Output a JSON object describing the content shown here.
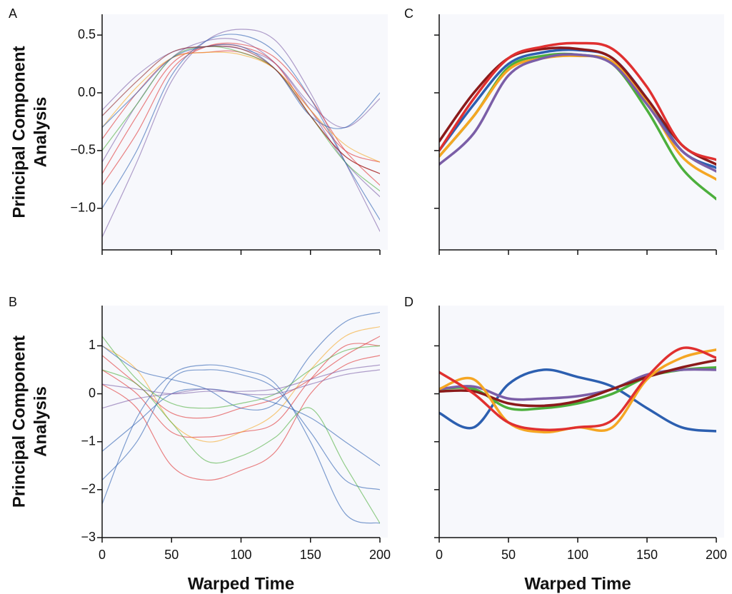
{
  "chart_data": [
    {
      "type": "line",
      "panel_label": "A",
      "y_label": [
        "Principal Component",
        "Analysis"
      ],
      "x": [
        0,
        25,
        50,
        75,
        100,
        125,
        150,
        175,
        200
      ],
      "xlim": [
        0,
        200
      ],
      "xticks": [
        0,
        50,
        100,
        150,
        200
      ],
      "show_xtick_labels": false,
      "ylim": [
        -1.36,
        0.68
      ],
      "yticks": [
        0.5,
        {
          "value": 0,
          "label": "0.0"
        },
        {
          "value": -0.5,
          "label": "−0.5"
        },
        {
          "value": -1,
          "label": "−1.0"
        }
      ],
      "show_ytick_labels": true,
      "line_width": 1.2,
      "opacity": 0.6,
      "series": [
        {
          "color": "#7b5ea7",
          "values": [
            -0.6,
            -0.1,
            0.3,
            0.45,
            0.45,
            0.25,
            -0.15,
            -0.6,
            -0.9
          ]
        },
        {
          "color": "#7b5ea7",
          "values": [
            -1.25,
            -0.6,
            0.1,
            0.45,
            0.55,
            0.45,
            0.0,
            -0.6,
            -1.2
          ]
        },
        {
          "color": "#7b5ea7",
          "values": [
            -0.15,
            0.15,
            0.35,
            0.4,
            0.38,
            0.25,
            -0.1,
            -0.3,
            -0.05
          ]
        },
        {
          "color": "#e03030",
          "values": [
            -0.7,
            -0.2,
            0.25,
            0.4,
            0.4,
            0.25,
            -0.2,
            -0.55,
            -0.7
          ]
        },
        {
          "color": "#e03030",
          "values": [
            -0.4,
            0.0,
            0.3,
            0.35,
            0.35,
            0.2,
            -0.15,
            -0.5,
            -0.6
          ]
        },
        {
          "color": "#e03030",
          "values": [
            -0.8,
            -0.35,
            0.2,
            0.4,
            0.42,
            0.3,
            -0.05,
            -0.5,
            -0.8
          ]
        },
        {
          "color": "#4caf3c",
          "values": [
            -0.5,
            -0.1,
            0.3,
            0.4,
            0.35,
            0.2,
            -0.2,
            -0.6,
            -0.85
          ]
        },
        {
          "color": "#f5a623",
          "values": [
            -0.3,
            0.05,
            0.3,
            0.35,
            0.33,
            0.2,
            -0.15,
            -0.45,
            -0.6
          ]
        },
        {
          "color": "#2c5fb0",
          "values": [
            -1.0,
            -0.5,
            0.15,
            0.45,
            0.5,
            0.35,
            -0.05,
            -0.6,
            -1.1
          ]
        },
        {
          "color": "#2c5fb0",
          "values": [
            -0.3,
            0.0,
            0.3,
            0.4,
            0.4,
            0.2,
            -0.2,
            -0.3,
            0.0
          ]
        },
        {
          "color": "#8b1a1a",
          "values": [
            -0.2,
            0.1,
            0.35,
            0.4,
            0.38,
            0.2,
            -0.2,
            -0.55,
            -0.7
          ]
        }
      ]
    },
    {
      "type": "line",
      "panel_label": "B",
      "y_label": [
        "Principal Component",
        "Analysis"
      ],
      "x_label": "Warped Time",
      "x": [
        0,
        25,
        50,
        75,
        100,
        125,
        150,
        175,
        200
      ],
      "xlim": [
        0,
        200
      ],
      "xticks": [
        0,
        50,
        100,
        150,
        200
      ],
      "show_xtick_labels": true,
      "ylim": [
        -3,
        1.84
      ],
      "yticks": [
        1,
        0,
        {
          "value": -1,
          "label": "−1"
        },
        {
          "value": -2,
          "label": "−2"
        },
        {
          "value": -3,
          "label": "−3"
        }
      ],
      "show_ytick_labels": true,
      "line_width": 1.2,
      "opacity": 0.6,
      "series": [
        {
          "color": "#e03030",
          "values": [
            0.5,
            0.0,
            -0.8,
            -0.9,
            -0.8,
            -0.6,
            0.3,
            1.0,
            1.0
          ]
        },
        {
          "color": "#e03030",
          "values": [
            0.2,
            -0.3,
            -1.5,
            -1.8,
            -1.6,
            -1.2,
            0.0,
            0.6,
            0.8
          ]
        },
        {
          "color": "#e03030",
          "values": [
            0.8,
            0.2,
            -0.4,
            -0.5,
            -0.3,
            -0.1,
            0.3,
            0.8,
            1.2
          ]
        },
        {
          "color": "#f5a623",
          "values": [
            1.0,
            0.5,
            -0.6,
            -1.0,
            -0.8,
            -0.4,
            0.5,
            1.2,
            1.4
          ]
        },
        {
          "color": "#2c5fb0",
          "values": [
            -1.8,
            -1.0,
            0.3,
            0.5,
            0.4,
            0.1,
            -0.8,
            -1.8,
            -2.0
          ]
        },
        {
          "color": "#2c5fb0",
          "values": [
            -2.3,
            -0.5,
            0.4,
            0.6,
            0.5,
            0.2,
            -1.0,
            -2.5,
            -2.7
          ]
        },
        {
          "color": "#2c5fb0",
          "values": [
            1.0,
            0.5,
            0.3,
            0.1,
            -0.3,
            -0.2,
            0.8,
            1.5,
            1.7
          ]
        },
        {
          "color": "#2c5fb0",
          "values": [
            -1.2,
            -0.6,
            0.0,
            0.1,
            0.0,
            -0.2,
            -0.5,
            -1.0,
            -1.5
          ]
        },
        {
          "color": "#4caf3c",
          "values": [
            0.5,
            0.2,
            -0.6,
            -1.4,
            -1.3,
            -0.9,
            -0.3,
            -1.5,
            -2.7
          ]
        },
        {
          "color": "#4caf3c",
          "values": [
            1.2,
            0.3,
            -0.2,
            -0.3,
            -0.2,
            0.0,
            0.5,
            0.9,
            1.0
          ]
        },
        {
          "color": "#7b5ea7",
          "values": [
            0.2,
            0.1,
            0.0,
            0.05,
            0.05,
            0.1,
            0.3,
            0.5,
            0.6
          ]
        },
        {
          "color": "#7b5ea7",
          "values": [
            -0.3,
            -0.1,
            0.0,
            0.1,
            0.0,
            0.0,
            0.2,
            0.4,
            0.5
          ]
        }
      ]
    },
    {
      "type": "line",
      "panel_label": "C",
      "x": [
        0,
        25,
        50,
        75,
        100,
        125,
        150,
        175,
        200
      ],
      "xlim": [
        0,
        200
      ],
      "xticks": [
        0,
        50,
        100,
        150,
        200
      ],
      "show_xtick_labels": false,
      "ylim": [
        -1.36,
        0.68
      ],
      "yticks": [
        0.5,
        0,
        -0.5,
        -1
      ],
      "show_ytick_labels": false,
      "line_width": 3.5,
      "opacity": 1,
      "series": [
        {
          "color": "#2c5fb0",
          "values": [
            -0.5,
            -0.1,
            0.25,
            0.35,
            0.37,
            0.3,
            -0.05,
            -0.5,
            -0.65
          ]
        },
        {
          "color": "#4caf3c",
          "values": [
            -0.55,
            -0.2,
            0.22,
            0.32,
            0.33,
            0.25,
            -0.15,
            -0.65,
            -0.92
          ]
        },
        {
          "color": "#f5a623",
          "values": [
            -0.55,
            -0.2,
            0.2,
            0.3,
            0.32,
            0.27,
            -0.08,
            -0.55,
            -0.75
          ]
        },
        {
          "color": "#7b5ea7",
          "values": [
            -0.62,
            -0.35,
            0.15,
            0.3,
            0.33,
            0.25,
            -0.1,
            -0.5,
            -0.68
          ]
        },
        {
          "color": "#8b1a1a",
          "values": [
            -0.42,
            0.0,
            0.3,
            0.38,
            0.38,
            0.3,
            -0.05,
            -0.45,
            -0.62
          ]
        },
        {
          "color": "#e03030",
          "values": [
            -0.5,
            -0.05,
            0.3,
            0.4,
            0.43,
            0.38,
            0.05,
            -0.45,
            -0.58
          ]
        }
      ]
    },
    {
      "type": "line",
      "panel_label": "D",
      "x_label": "Warped Time",
      "x": [
        0,
        25,
        50,
        75,
        100,
        125,
        150,
        175,
        200
      ],
      "xlim": [
        0,
        200
      ],
      "xticks": [
        0,
        50,
        100,
        150,
        200
      ],
      "show_xtick_labels": true,
      "ylim": [
        -3,
        1.84
      ],
      "yticks": [
        1,
        0,
        -1,
        -2,
        -3
      ],
      "show_ytick_labels": false,
      "line_width": 3.5,
      "opacity": 1,
      "series": [
        {
          "color": "#2c5fb0",
          "values": [
            -0.4,
            -0.7,
            0.2,
            0.5,
            0.35,
            0.15,
            -0.3,
            -0.7,
            -0.78
          ]
        },
        {
          "color": "#4caf3c",
          "values": [
            0.1,
            0.1,
            -0.3,
            -0.3,
            -0.2,
            0.0,
            0.35,
            0.5,
            0.55
          ]
        },
        {
          "color": "#7b5ea7",
          "values": [
            0.1,
            0.15,
            -0.1,
            -0.1,
            -0.05,
            0.1,
            0.4,
            0.5,
            0.5
          ]
        },
        {
          "color": "#8b1a1a",
          "values": [
            0.05,
            0.05,
            -0.2,
            -0.25,
            -0.15,
            0.1,
            0.35,
            0.55,
            0.7
          ]
        },
        {
          "color": "#f5a623",
          "values": [
            0.1,
            0.3,
            -0.6,
            -0.8,
            -0.7,
            -0.7,
            0.3,
            0.75,
            0.92
          ]
        },
        {
          "color": "#e03030",
          "values": [
            0.45,
            0.0,
            -0.6,
            -0.75,
            -0.7,
            -0.55,
            0.35,
            0.95,
            0.75
          ]
        }
      ]
    }
  ]
}
